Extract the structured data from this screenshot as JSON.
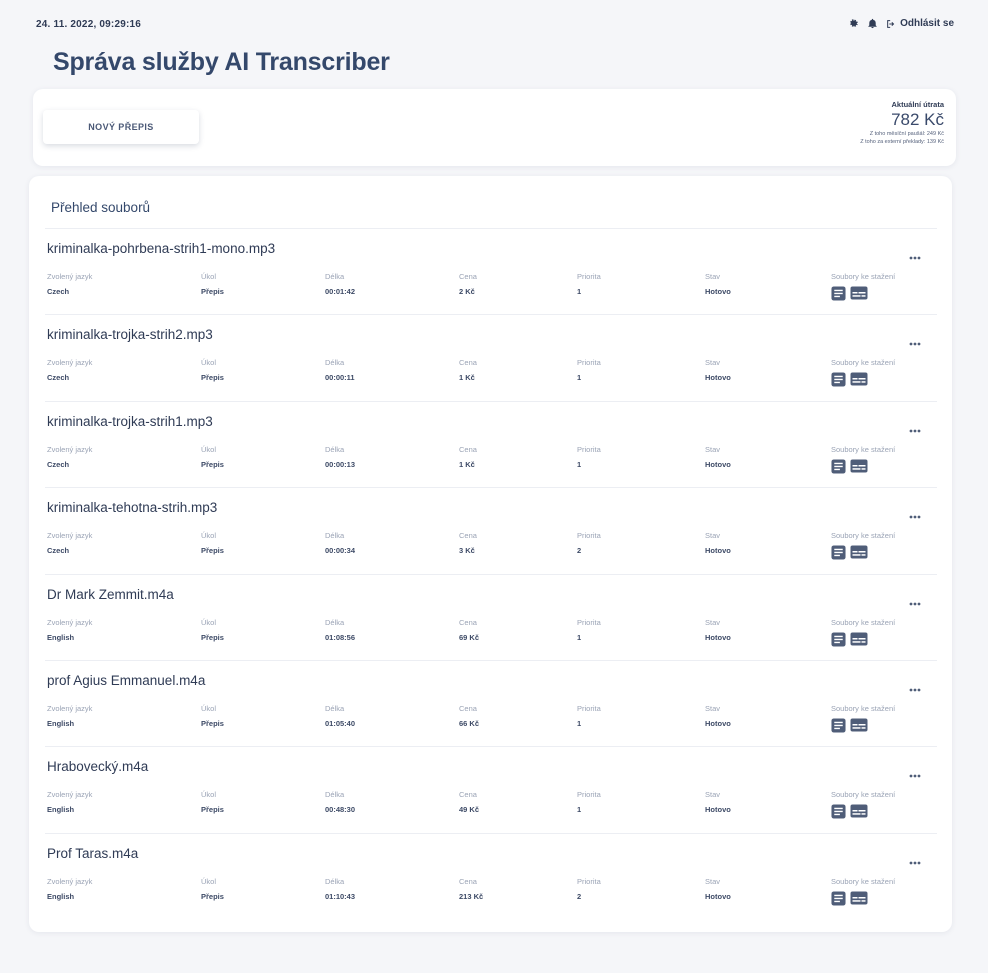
{
  "header": {
    "datetime": "24. 11. 2022, 09:29:16",
    "logout_label": "Odhlásit se",
    "settings_icon": "gear-icon",
    "notifications_icon": "bell-icon",
    "logout_icon": "logout-icon"
  },
  "page": {
    "title": "Správa služby AI Transcriber"
  },
  "actions": {
    "new_transcript_label": "NOVÝ PŘEPIS"
  },
  "spending": {
    "label": "Aktuální útrata",
    "amount": "782 Kč",
    "monthly_fee": "Z toho měsíční paušál: 249 Kč",
    "external_translations": "Z toho za externí překlady: 139 Kč"
  },
  "overview": {
    "title": "Přehled souborů",
    "columns": {
      "language": "Zvolený jazyk",
      "task": "Úkol",
      "length": "Délka",
      "price": "Cena",
      "priority": "Priorita",
      "status": "Stav",
      "downloads": "Soubory ke stažení"
    },
    "files": [
      {
        "name": "kriminalka-pohrbena-strih1-mono.mp3",
        "language": "Czech",
        "task": "Přepis",
        "length": "00:01:42",
        "price": "2 Kč",
        "priority": "1",
        "status": "Hotovo"
      },
      {
        "name": "kriminalka-trojka-strih2.mp3",
        "language": "Czech",
        "task": "Přepis",
        "length": "00:00:11",
        "price": "1 Kč",
        "priority": "1",
        "status": "Hotovo"
      },
      {
        "name": "kriminalka-trojka-strih1.mp3",
        "language": "Czech",
        "task": "Přepis",
        "length": "00:00:13",
        "price": "1 Kč",
        "priority": "1",
        "status": "Hotovo"
      },
      {
        "name": "kriminalka-tehotna-strih.mp3",
        "language": "Czech",
        "task": "Přepis",
        "length": "00:00:34",
        "price": "3 Kč",
        "priority": "2",
        "status": "Hotovo"
      },
      {
        "name": "Dr Mark Zemmit.m4a",
        "language": "English",
        "task": "Přepis",
        "length": "01:08:56",
        "price": "69 Kč",
        "priority": "1",
        "status": "Hotovo"
      },
      {
        "name": "prof Agius Emmanuel.m4a",
        "language": "English",
        "task": "Přepis",
        "length": "01:05:40",
        "price": "66 Kč",
        "priority": "1",
        "status": "Hotovo"
      },
      {
        "name": "Hrabovecký.m4a",
        "language": "English",
        "task": "Přepis",
        "length": "00:48:30",
        "price": "49 Kč",
        "priority": "1",
        "status": "Hotovo"
      },
      {
        "name": "Prof Taras.m4a",
        "language": "English",
        "task": "Přepis",
        "length": "01:10:43",
        "price": "213 Kč",
        "priority": "2",
        "status": "Hotovo"
      }
    ]
  },
  "icons": {
    "row_menu": "more-icon",
    "download_document": "document-icon",
    "download_subtitles": "subtitles-icon"
  },
  "colors": {
    "background": "#f5f6f9",
    "card": "#ffffff",
    "title": "#34486b",
    "icon": "#4f5d78"
  }
}
